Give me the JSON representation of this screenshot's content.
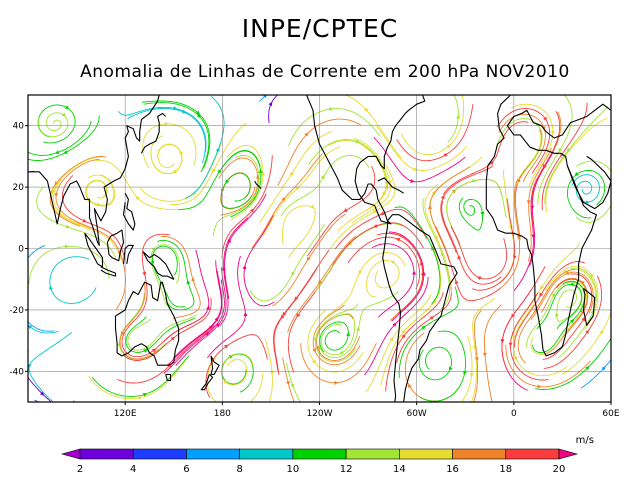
{
  "header": {
    "title": "INPE/CPTEC",
    "subtitle": "Anomalia de Linhas de Corrente em 200 hPa NOV2010"
  },
  "map": {
    "lon_range": [
      60,
      420
    ],
    "lat_range": [
      -50,
      50
    ],
    "lat_ticks": [
      {
        "value": 40,
        "label": "40"
      },
      {
        "value": 20,
        "label": "20"
      },
      {
        "value": 0,
        "label": "0"
      },
      {
        "value": -20,
        "label": "-20"
      },
      {
        "value": -40,
        "label": "-40"
      }
    ],
    "lon_ticks": [
      {
        "value": 120,
        "label": "120E"
      },
      {
        "value": 180,
        "label": "180"
      },
      {
        "value": 240,
        "label": "120W"
      },
      {
        "value": 300,
        "label": "60W"
      },
      {
        "value": 360,
        "label": "0"
      },
      {
        "value": 420,
        "label": "60E"
      }
    ],
    "land_color": "#000000",
    "grid_color": "#8c8c8c"
  },
  "colorbar": {
    "unit": "m/s",
    "levels": [
      "2",
      "4",
      "6",
      "8",
      "10",
      "12",
      "14",
      "16",
      "18",
      "20"
    ],
    "colors": [
      "#a000c8",
      "#6e00dc",
      "#1e3cff",
      "#00a0ff",
      "#00c8c8",
      "#00d200",
      "#a0e632",
      "#e6dc32",
      "#f08228",
      "#fa3c3c",
      "#f00082"
    ]
  }
}
